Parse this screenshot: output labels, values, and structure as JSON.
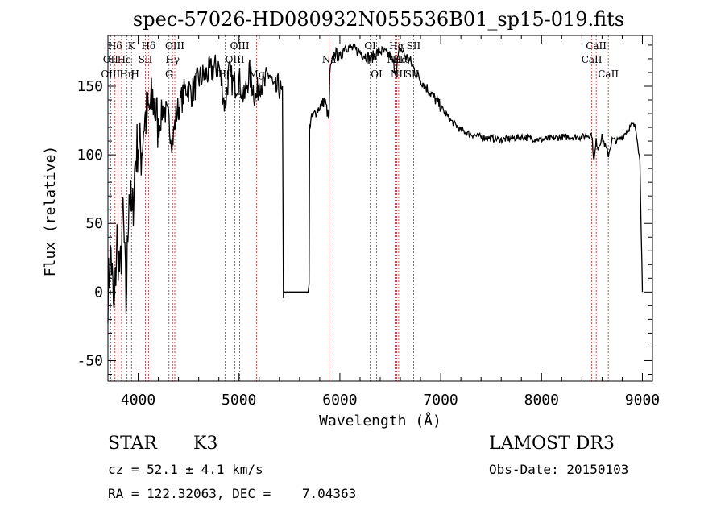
{
  "chart_data": {
    "type": "line",
    "title": "spec-57026-HD080932N055536B01_sp15-019.fits",
    "xlabel": "Wavelength (Å)",
    "ylabel": "Flux (relative)",
    "xlim": [
      3700,
      9100
    ],
    "ylim": [
      -65,
      187
    ],
    "xticks": [
      4000,
      5000,
      6000,
      7000,
      8000,
      9000
    ],
    "yticks": [
      -50,
      0,
      50,
      100,
      150
    ],
    "grid": false,
    "series": [
      {
        "x": [
          3700,
          3730,
          3760,
          3790,
          3820,
          3850,
          3880,
          3910,
          3940,
          3970,
          4000,
          4030,
          4060,
          4100,
          4150,
          4200,
          4250,
          4300,
          4340,
          4380,
          4430,
          4480,
          4530,
          4600,
          4700,
          4800,
          4860,
          4900,
          4950,
          5000,
          5050,
          5100,
          5170,
          5200,
          5250,
          5300,
          5350,
          5400,
          5430,
          5440,
          5445,
          5450,
          5500,
          5600,
          5690,
          5695,
          5700,
          5710,
          5750,
          5800,
          5850,
          5893,
          5900,
          5950,
          6000,
          6050,
          6100,
          6200,
          6300,
          6400,
          6500,
          6563,
          6570,
          6600,
          6650,
          6700,
          6750,
          6800,
          6900,
          7000,
          7100,
          7200,
          7300,
          7400,
          7500,
          7600,
          7700,
          7800,
          7900,
          8000,
          8100,
          8200,
          8300,
          8400,
          8498,
          8520,
          8542,
          8560,
          8600,
          8662,
          8700,
          8750,
          8800,
          8850,
          8900,
          8930,
          8950,
          8975,
          8990,
          9000
        ],
        "y": [
          0,
          30,
          -20,
          40,
          10,
          60,
          -10,
          80,
          50,
          95,
          110,
          100,
          125,
          130,
          140,
          120,
          135,
          125,
          110,
          130,
          140,
          150,
          145,
          155,
          160,
          165,
          135,
          160,
          150,
          155,
          140,
          160,
          140,
          155,
          150,
          160,
          145,
          150,
          140,
          2,
          0,
          0,
          0,
          0,
          0,
          5,
          120,
          125,
          130,
          135,
          140,
          125,
          160,
          175,
          170,
          180,
          178,
          175,
          170,
          176,
          172,
          160,
          168,
          178,
          172,
          168,
          160,
          155,
          145,
          135,
          125,
          118,
          115,
          113,
          112,
          111,
          112,
          113,
          112,
          111,
          112,
          113,
          113,
          113,
          115,
          95,
          110,
          105,
          113,
          100,
          111,
          110,
          113,
          118,
          122,
          120,
          112,
          95,
          40,
          0
        ]
      }
    ],
    "lines": [
      {
        "name": "Hδ",
        "x": 3770
      },
      {
        "name": "OII",
        "x": 3727
      },
      {
        "name": "OIII",
        "x": 3800
      },
      {
        "name": "Hε",
        "x": 3835
      },
      {
        "name": "Hη",
        "x": 3889
      },
      {
        "name": "K",
        "x": 3934
      },
      {
        "name": "H",
        "x": 3969
      },
      {
        "name": "Hδ",
        "x": 4102
      },
      {
        "name": "SII",
        "x": 4072
      },
      {
        "name": "G",
        "x": 4305
      },
      {
        "name": "Hγ",
        "x": 4341
      },
      {
        "name": "OIII",
        "x": 4363
      },
      {
        "name": "Hβ",
        "x": 4861
      },
      {
        "name": "OIII",
        "x": 4959
      },
      {
        "name": "OIII",
        "x": 5007
      },
      {
        "name": "Mg",
        "x": 5175
      },
      {
        "name": "Na",
        "x": 5893
      },
      {
        "name": "OI",
        "x": 6300
      },
      {
        "name": "OI",
        "x": 6364
      },
      {
        "name": "NII",
        "x": 6548
      },
      {
        "name": "Hα",
        "x": 6563
      },
      {
        "name": "NII",
        "x": 6583
      },
      {
        "name": "SII",
        "x": 6716
      },
      {
        "name": "SII",
        "x": 6731
      },
      {
        "name": "CaII",
        "x": 8498
      },
      {
        "name": "CaII",
        "x": 8542
      },
      {
        "name": "CaII",
        "x": 8662
      }
    ],
    "line_labels": [
      {
        "text": "Hδ",
        "x": 3770,
        "row": 1
      },
      {
        "text": "OII",
        "x": 3727,
        "row": 2
      },
      {
        "text": "OIII",
        "x": 3727,
        "row": 3
      },
      {
        "text": "K",
        "x": 3934,
        "row": 1
      },
      {
        "text": "Hε",
        "x": 3860,
        "row": 2
      },
      {
        "text": "Hη",
        "x": 3885,
        "row": 3
      },
      {
        "text": "Hδ",
        "x": 4102,
        "row": 1
      },
      {
        "text": "SII",
        "x": 4072,
        "row": 2
      },
      {
        "text": "H",
        "x": 3969,
        "row": 3
      },
      {
        "text": "OIII",
        "x": 4363,
        "row": 1
      },
      {
        "text": "Hγ",
        "x": 4341,
        "row": 2
      },
      {
        "text": "G",
        "x": 4305,
        "row": 3
      },
      {
        "text": "OIII",
        "x": 5007,
        "row": 1
      },
      {
        "text": "OIII",
        "x": 4959,
        "row": 2
      },
      {
        "text": "Hβ",
        "x": 4861,
        "row": 3
      },
      {
        "text": "Mg",
        "x": 5175,
        "row": 3
      },
      {
        "text": "Na",
        "x": 5893,
        "row": 2
      },
      {
        "text": "OI",
        "x": 6300,
        "row": 1
      },
      {
        "text": "OI",
        "x": 6364,
        "row": 3
      },
      {
        "text": "Hα",
        "x": 6563,
        "row": 1
      },
      {
        "text": "SII",
        "x": 6731,
        "row": 1
      },
      {
        "text": "NII",
        "x": 6548,
        "row": 2
      },
      {
        "text": "Hα",
        "x": 6600,
        "row": 2
      },
      {
        "text": "NII",
        "x": 6583,
        "row": 3
      },
      {
        "text": "SII",
        "x": 6716,
        "row": 3
      },
      {
        "text": "CaII",
        "x": 8542,
        "row": 1
      },
      {
        "text": "CaII",
        "x": 8498,
        "row": 2
      },
      {
        "text": "CaII",
        "x": 8662,
        "row": 3
      }
    ]
  },
  "footer": {
    "object_type": "STAR",
    "subclass": "K3",
    "survey": "LAMOST DR3",
    "cz": "cz = 52.1 ± 4.1 km/s",
    "obs_date": "Obs-Date: 20150103",
    "coords": "RA = 122.32063, DEC =    7.04363"
  }
}
